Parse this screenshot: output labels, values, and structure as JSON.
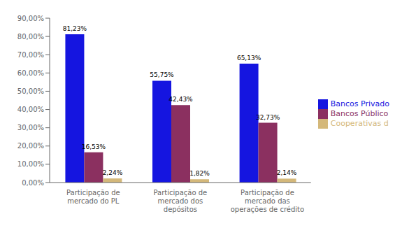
{
  "chart_data": {
    "type": "bar",
    "categories": [
      "Participação de\nmercado do PL",
      "Participação de\nmercado dos\ndepósitos",
      "Participação de\nmercado das\noperações de crédito"
    ],
    "series": [
      {
        "name": "Bancos Privado",
        "color": "#1515E0",
        "values": [
          81.23,
          55.75,
          65.13
        ],
        "value_labels": [
          "81,23%",
          "55,75%",
          "65,13%"
        ]
      },
      {
        "name": "Bancos Público",
        "color": "#8B3060",
        "values": [
          16.53,
          42.43,
          32.73
        ],
        "value_labels": [
          "16,53%",
          "42,43%",
          "32,73%"
        ]
      },
      {
        "name": "Cooperativas d",
        "color": "#D4B87A",
        "values": [
          2.24,
          1.82,
          2.14
        ],
        "value_labels": [
          "2,24%",
          "1,82%",
          "2,14%"
        ]
      }
    ],
    "ylim": [
      0,
      90
    ],
    "yticks": [
      {
        "value": 0,
        "label": "0,00%"
      },
      {
        "value": 10,
        "label": "10,00%"
      },
      {
        "value": 20,
        "label": "20,00%"
      },
      {
        "value": 30,
        "label": "30,00%"
      },
      {
        "value": 40,
        "label": "40,00%"
      },
      {
        "value": 50,
        "label": "50,00%"
      },
      {
        "value": 60,
        "label": "60,00%"
      },
      {
        "value": 70,
        "label": "70,00%"
      },
      {
        "value": 80,
        "label": "80,00%"
      },
      {
        "value": 90,
        "label": "90,00%"
      }
    ],
    "data_labels": true,
    "legend": "right",
    "grid": false
  }
}
